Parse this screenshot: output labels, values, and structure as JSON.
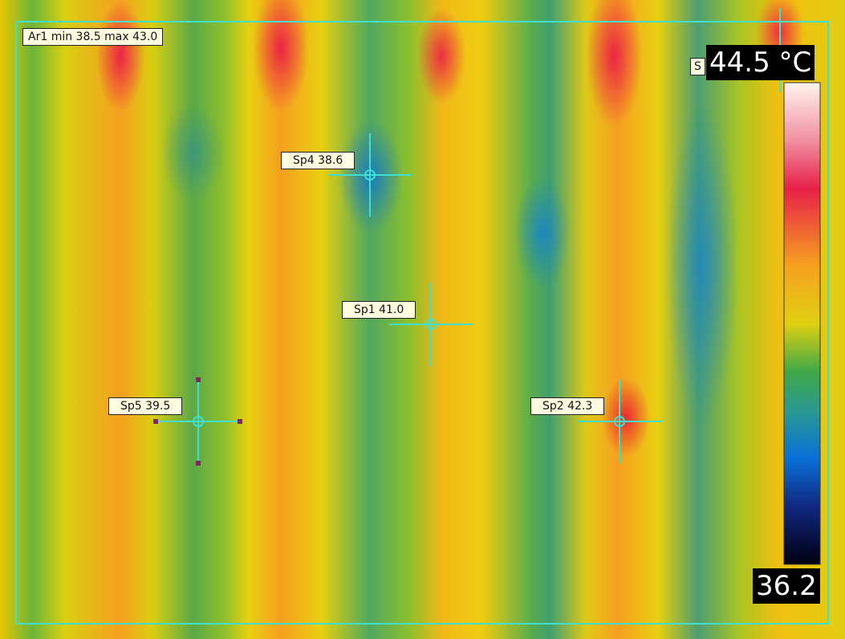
{
  "area_label": "Ar1 min 38.5 max 43.0",
  "spot_labels": [
    "Sp4 38.6",
    "Sp1 41.0",
    "Sp5 39.5",
    "Sp2 42.3"
  ],
  "partial_spot_label": "S",
  "scale": {
    "max": "44.5 °C",
    "min": "36.2"
  }
}
